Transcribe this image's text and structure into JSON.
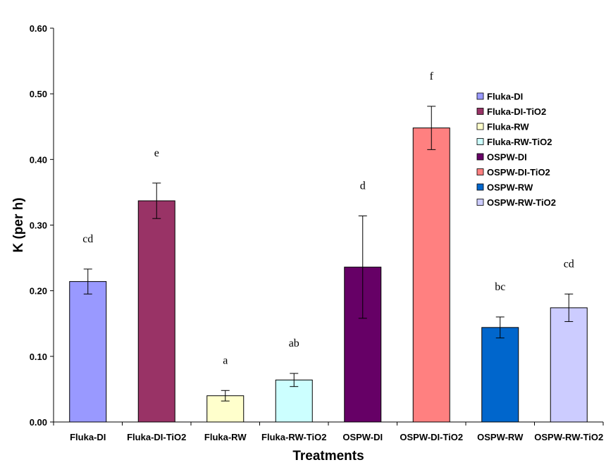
{
  "chart_data": {
    "type": "bar",
    "title": "",
    "xlabel": "Treatments",
    "ylabel": "K (per h)",
    "ylim": [
      0,
      0.6
    ],
    "yticks": [
      "0.00",
      "0.10",
      "0.20",
      "0.30",
      "0.40",
      "0.50",
      "0.60"
    ],
    "grid": false,
    "legend_position": "right",
    "categories": [
      "Fluka-DI",
      "Fluka-DI-TiO2",
      "Fluka-RW",
      "Fluka-RW-TiO2",
      "OSPW-DI",
      "OSPW-DI-TiO2",
      "OSPW-RW",
      "OSPW-RW-TiO2"
    ],
    "values": [
      0.214,
      0.337,
      0.04,
      0.064,
      0.236,
      0.448,
      0.144,
      0.174
    ],
    "errors": [
      0.019,
      0.027,
      0.008,
      0.01,
      0.078,
      0.033,
      0.016,
      0.021
    ],
    "significance": [
      "cd",
      "e",
      "a",
      "ab",
      "d",
      "f",
      "bc",
      "cd"
    ],
    "colors": [
      "#9999ff",
      "#993366",
      "#ffffcc",
      "#ccffff",
      "#660066",
      "#ff8080",
      "#0066cc",
      "#ccccff"
    ]
  }
}
